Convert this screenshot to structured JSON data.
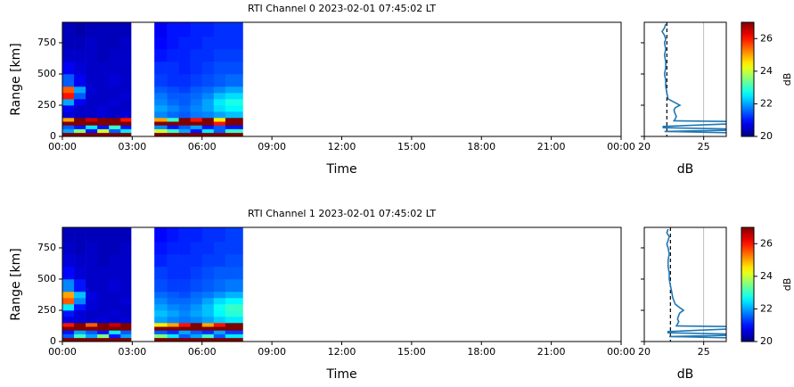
{
  "chart_data": [
    {
      "type": "heatmap",
      "title": "RTI Channel 0 2023-02-01 07:45:02 LT",
      "x_label": "Time",
      "y_label": "Range [km]",
      "xlim": [
        0,
        24
      ],
      "xticks": [
        {
          "value": 0,
          "label": "00:00"
        },
        {
          "value": 3,
          "label": "03:00"
        },
        {
          "value": 6,
          "label": "06:00"
        },
        {
          "value": 9,
          "label": "09:00"
        },
        {
          "value": 12,
          "label": "12:00"
        },
        {
          "value": 15,
          "label": "15:00"
        },
        {
          "value": 18,
          "label": "18:00"
        },
        {
          "value": 21,
          "label": "21:00"
        },
        {
          "value": 24,
          "label": "00:00"
        }
      ],
      "ylim": [
        0,
        914
      ],
      "yticks": [
        0,
        250,
        500,
        750
      ],
      "x": [
        0,
        0.5,
        1,
        1.5,
        2,
        2.5,
        2.95,
        3.95,
        4.5,
        5,
        5.5,
        6,
        6.5,
        7,
        7.75
      ],
      "y": [
        0,
        30,
        60,
        90,
        120,
        150,
        200,
        250,
        300,
        350,
        400,
        500,
        600,
        700,
        800,
        914
      ],
      "z": [
        [
          27,
          27,
          27,
          27,
          27,
          27,
          null,
          27,
          27,
          27,
          27,
          27,
          27,
          27
        ],
        [
          22,
          23.5,
          21,
          24,
          21.5,
          22.5,
          null,
          24,
          23,
          22,
          21,
          22.5,
          21.5,
          23
        ],
        [
          21.5,
          21,
          22.5,
          21,
          23,
          21,
          null,
          21.8,
          21,
          21.5,
          22,
          21,
          21.5,
          21
        ],
        [
          27,
          27,
          27,
          27,
          27,
          27,
          null,
          27,
          27,
          27,
          27,
          27,
          26,
          27
        ],
        [
          25,
          27,
          26.5,
          27,
          27,
          26,
          null,
          25,
          23,
          27,
          26,
          27,
          24.5,
          27
        ],
        [
          20.6,
          20.5,
          20.5,
          20.6,
          20.5,
          20.6,
          null,
          21.8,
          21.6,
          21.5,
          21.7,
          21.8,
          22,
          22.2
        ],
        [
          20.8,
          20.5,
          20.5,
          20.6,
          20.5,
          20.5,
          null,
          22,
          21.8,
          21.6,
          21.8,
          22,
          22.4,
          22.6
        ],
        [
          22,
          20.8,
          20.5,
          20.5,
          20.6,
          20.5,
          null,
          21.8,
          21.6,
          21.5,
          21.7,
          22,
          22.5,
          22.8
        ],
        [
          26,
          21.5,
          20.5,
          20.5,
          20.5,
          20.6,
          null,
          21.7,
          21.5,
          21.5,
          21.6,
          21.8,
          22.2,
          22.4
        ],
        [
          25.5,
          22,
          20.6,
          20.5,
          20.5,
          20.5,
          null,
          21.5,
          21.4,
          21.3,
          21.5,
          21.6,
          21.8,
          22
        ],
        [
          21.5,
          20.8,
          20.5,
          20.5,
          20.6,
          20.5,
          null,
          21.3,
          21.2,
          21.2,
          21.3,
          21.4,
          21.5,
          21.6
        ],
        [
          20.8,
          20.6,
          20.5,
          20.5,
          20.5,
          20.5,
          null,
          21.2,
          21.2,
          21.1,
          21.2,
          21.3,
          21.4,
          21.4
        ],
        [
          20.5,
          20.5,
          20.5,
          20.4,
          20.5,
          20.5,
          null,
          21,
          21.1,
          21.1,
          21.2,
          21.2,
          21.3,
          21.3
        ],
        [
          20.4,
          20.4,
          20.5,
          20.4,
          20.4,
          20.5,
          null,
          20.9,
          21,
          21.1,
          21.1,
          21.2,
          21.2,
          21.2
        ],
        [
          20.4,
          20.3,
          20.4,
          20.4,
          20.4,
          20.4,
          null,
          20.8,
          21,
          21,
          21.1,
          21.1,
          21.2,
          21.2
        ]
      ],
      "colormap": "jet",
      "clim": [
        20,
        27
      ],
      "colorbar_ticks": [
        20,
        22,
        24,
        26
      ],
      "colorbar_label": "dB",
      "profile": {
        "type": "line",
        "x_label": "dB",
        "xlim": [
          20,
          26.9
        ],
        "xticks": [
          20,
          25
        ],
        "grid": true,
        "color": "#1f77b4",
        "noise_level": 21.9,
        "y": [
          900,
          870,
          840,
          810,
          780,
          750,
          700,
          650,
          600,
          550,
          500,
          450,
          400,
          350,
          300,
          270,
          250,
          230,
          210,
          180,
          160,
          140,
          125,
          120,
          100,
          80,
          70,
          60,
          50,
          40,
          30,
          0
        ],
        "values": [
          21.8,
          21.7,
          21.5,
          21.7,
          21.8,
          21.7,
          21.8,
          21.7,
          21.8,
          21.8,
          21.7,
          21.8,
          21.8,
          21.9,
          22.0,
          22.6,
          23.0,
          22.6,
          22.5,
          22.6,
          22.7,
          22.6,
          22.5,
          27,
          27,
          21.6,
          21.6,
          27,
          27,
          21.7,
          27,
          27
        ]
      }
    },
    {
      "type": "heatmap",
      "title": "RTI Channel 1 2023-02-01 07:45:02 LT",
      "x_label": "Time",
      "y_label": "Range [km]",
      "xlim": [
        0,
        24
      ],
      "xticks": [
        {
          "value": 0,
          "label": "00:00"
        },
        {
          "value": 3,
          "label": "03:00"
        },
        {
          "value": 6,
          "label": "06:00"
        },
        {
          "value": 9,
          "label": "09:00"
        },
        {
          "value": 12,
          "label": "12:00"
        },
        {
          "value": 15,
          "label": "15:00"
        },
        {
          "value": 18,
          "label": "18:00"
        },
        {
          "value": 21,
          "label": "21:00"
        },
        {
          "value": 24,
          "label": "00:00"
        }
      ],
      "ylim": [
        0,
        914
      ],
      "yticks": [
        0,
        250,
        500,
        750
      ],
      "x": [
        0,
        0.5,
        1,
        1.5,
        2,
        2.5,
        2.95,
        3.95,
        4.5,
        5,
        5.5,
        6,
        6.5,
        7,
        7.75
      ],
      "y": [
        0,
        30,
        60,
        90,
        120,
        150,
        200,
        250,
        300,
        350,
        400,
        500,
        600,
        700,
        800,
        914
      ],
      "z": [
        [
          27,
          27,
          27,
          27,
          27,
          27,
          null,
          27,
          27,
          27,
          27,
          27,
          27,
          27
        ],
        [
          21.5,
          23,
          22,
          23.5,
          21,
          22,
          null,
          23.5,
          22.5,
          21.5,
          22,
          23,
          21.5,
          22.5
        ],
        [
          21,
          22,
          21.5,
          21,
          22.5,
          21.5,
          null,
          21.5,
          21.2,
          22,
          21.5,
          21.2,
          22,
          21.3
        ],
        [
          27,
          27,
          27,
          27,
          27,
          27,
          null,
          27,
          27,
          27,
          27,
          27,
          27,
          27
        ],
        [
          26,
          27,
          25.5,
          27,
          26.5,
          27,
          null,
          24.5,
          25,
          26,
          27,
          25,
          26,
          27
        ],
        [
          20.7,
          20.6,
          20.5,
          20.6,
          20.5,
          20.6,
          null,
          22,
          21.8,
          21.7,
          21.8,
          22,
          22.3,
          22.5
        ],
        [
          21,
          20.6,
          20.5,
          20.5,
          20.6,
          20.5,
          null,
          22.2,
          22,
          21.8,
          22,
          22.2,
          22.6,
          22.9
        ],
        [
          22.5,
          21,
          20.6,
          20.5,
          20.5,
          20.5,
          null,
          22,
          21.8,
          21.7,
          21.9,
          22.2,
          22.7,
          23
        ],
        [
          25.5,
          21.8,
          20.6,
          20.5,
          20.5,
          20.6,
          null,
          21.8,
          21.6,
          21.6,
          21.7,
          22,
          22.4,
          22.6
        ],
        [
          25,
          22.2,
          20.7,
          20.5,
          20.5,
          20.5,
          null,
          21.6,
          21.5,
          21.4,
          21.6,
          21.7,
          21.9,
          22.1
        ],
        [
          21.8,
          21,
          20.5,
          20.5,
          20.6,
          20.5,
          null,
          21.4,
          21.3,
          21.3,
          21.4,
          21.5,
          21.6,
          21.7
        ],
        [
          20.9,
          20.6,
          20.5,
          20.5,
          20.5,
          20.5,
          null,
          21.3,
          21.2,
          21.2,
          21.3,
          21.4,
          21.5,
          21.5
        ],
        [
          20.6,
          20.5,
          20.5,
          20.4,
          20.5,
          20.5,
          null,
          21.1,
          21.2,
          21.2,
          21.2,
          21.3,
          21.3,
          21.4
        ],
        [
          20.5,
          20.4,
          20.5,
          20.4,
          20.4,
          20.5,
          null,
          21,
          21.1,
          21.1,
          21.2,
          21.2,
          21.3,
          21.3
        ],
        [
          20.4,
          20.4,
          20.4,
          20.4,
          20.4,
          20.4,
          null,
          20.9,
          21,
          21.1,
          21.1,
          21.2,
          21.2,
          21.3
        ]
      ],
      "colormap": "jet",
      "clim": [
        20,
        27
      ],
      "colorbar_ticks": [
        20,
        22,
        24,
        26
      ],
      "colorbar_label": "dB",
      "profile": {
        "type": "line",
        "x_label": "dB",
        "xlim": [
          20,
          26.9
        ],
        "xticks": [
          20,
          25
        ],
        "grid": true,
        "color": "#1f77b4",
        "noise_level": 22.2,
        "y": [
          900,
          870,
          840,
          810,
          780,
          750,
          700,
          650,
          600,
          550,
          500,
          450,
          400,
          350,
          300,
          270,
          250,
          230,
          210,
          180,
          160,
          140,
          125,
          120,
          100,
          80,
          70,
          60,
          50,
          40,
          30,
          0
        ],
        "values": [
          22.0,
          21.9,
          22.1,
          22.0,
          21.9,
          22.0,
          22.1,
          22.0,
          22.0,
          22.1,
          22.1,
          22.2,
          22.3,
          22.4,
          22.6,
          23.0,
          23.3,
          23.0,
          22.9,
          22.8,
          22.9,
          22.8,
          22.7,
          27,
          27,
          22.0,
          22.0,
          27,
          27,
          22.1,
          27,
          27
        ]
      }
    }
  ]
}
